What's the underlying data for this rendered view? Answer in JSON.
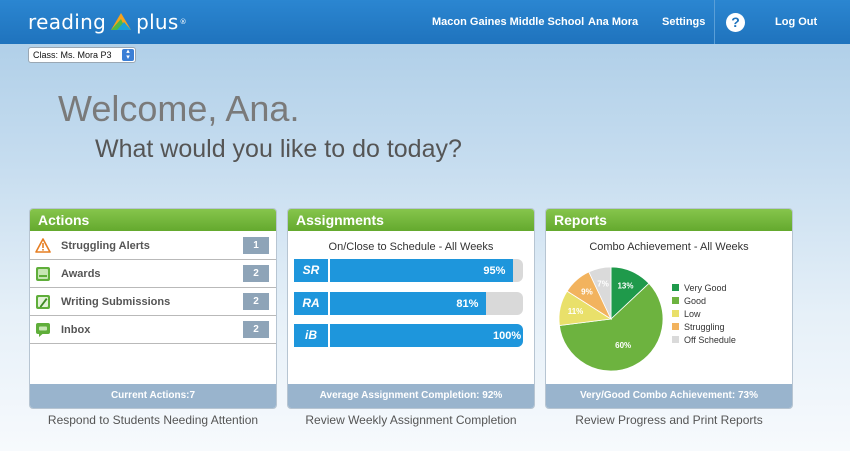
{
  "brand": {
    "left": "reading",
    "right": "plus",
    "tm": "®"
  },
  "nav": {
    "school": "Macon Gaines Middle School",
    "user": "Ana Mora",
    "settings": "Settings",
    "help_icon": "?",
    "logout": "Log Out"
  },
  "class_select": {
    "value": "Class: Ms. Mora P3"
  },
  "welcome": "Welcome, Ana.",
  "subtitle": "What would you like to do today?",
  "actions": {
    "title": "Actions",
    "items": [
      {
        "label": "Struggling Alerts",
        "count": "1",
        "icon": "warning-icon"
      },
      {
        "label": "Awards",
        "count": "2",
        "icon": "award-icon"
      },
      {
        "label": "Writing Submissions",
        "count": "2",
        "icon": "pencil-icon"
      },
      {
        "label": "Inbox",
        "count": "2",
        "icon": "chat-icon"
      }
    ],
    "footer": "Current Actions:7",
    "caption": "Respond to Students Needing Attention"
  },
  "assignments": {
    "title": "Assignments",
    "subtitle": "On/Close to Schedule - All Weeks",
    "bars": [
      {
        "badge": "SR",
        "percent": 95,
        "label": "95%"
      },
      {
        "badge": "RA",
        "percent": 81,
        "label": "81%"
      },
      {
        "badge": "iB",
        "percent": 100,
        "label": "100%"
      }
    ],
    "footer": "Average Assignment Completion: 92%",
    "caption": "Review Weekly Assignment Completion"
  },
  "reports": {
    "title": "Reports",
    "subtitle": "Combo Achievement - All Weeks",
    "footer": "Very/Good Combo Achievement: 73%",
    "caption": "Review Progress and Print Reports"
  },
  "chart_data": {
    "type": "pie",
    "title": "Combo Achievement - All Weeks",
    "categories": [
      "Very Good",
      "Good",
      "Low",
      "Struggling",
      "Off Schedule"
    ],
    "values": [
      13,
      60,
      11,
      9,
      7
    ],
    "labels": [
      "13%",
      "60%",
      "11%",
      "9%",
      "7%"
    ],
    "colors": [
      "#1f9a4b",
      "#6db33f",
      "#e9e06a",
      "#f2b35e",
      "#dadada"
    ],
    "legend": "right"
  }
}
